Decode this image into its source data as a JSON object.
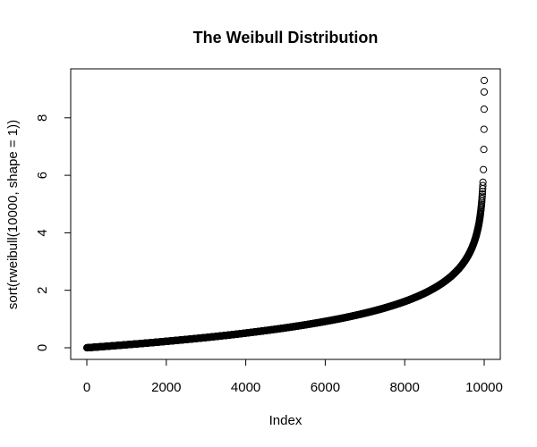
{
  "chart_data": {
    "type": "scatter",
    "title": "The Weibull Distribution",
    "xlabel": "Index",
    "ylabel": "sort(rweibull(10000, shape = 1))",
    "xlim": [
      0,
      10000
    ],
    "ylim": [
      0,
      9.3
    ],
    "xticks": [
      0,
      2000,
      4000,
      6000,
      8000,
      10000
    ],
    "yticks": [
      0,
      2,
      4,
      6,
      8
    ],
    "grid": false,
    "legend": "none",
    "marker": "open-circle",
    "n_points": 10000,
    "distribution": "sorted Weibull sample, shape = 1 (exponential quantiles)",
    "points": [
      {
        "x": 1,
        "y": 0.0001
      },
      {
        "x": 500,
        "y": 0.05
      },
      {
        "x": 1000,
        "y": 0.105
      },
      {
        "x": 2000,
        "y": 0.22
      },
      {
        "x": 3000,
        "y": 0.36
      },
      {
        "x": 4000,
        "y": 0.51
      },
      {
        "x": 5000,
        "y": 0.69
      },
      {
        "x": 6000,
        "y": 0.92
      },
      {
        "x": 7000,
        "y": 1.2
      },
      {
        "x": 8000,
        "y": 1.61
      },
      {
        "x": 9000,
        "y": 2.3
      },
      {
        "x": 9500,
        "y": 3.0
      },
      {
        "x": 9800,
        "y": 3.9
      },
      {
        "x": 9900,
        "y": 4.6
      },
      {
        "x": 9950,
        "y": 5.3
      },
      {
        "x": 9980,
        "y": 6.2
      },
      {
        "x": 9990,
        "y": 6.9
      },
      {
        "x": 9995,
        "y": 7.6
      },
      {
        "x": 9998,
        "y": 8.3
      },
      {
        "x": 9999,
        "y": 8.9
      },
      {
        "x": 10000,
        "y": 9.3
      }
    ]
  }
}
